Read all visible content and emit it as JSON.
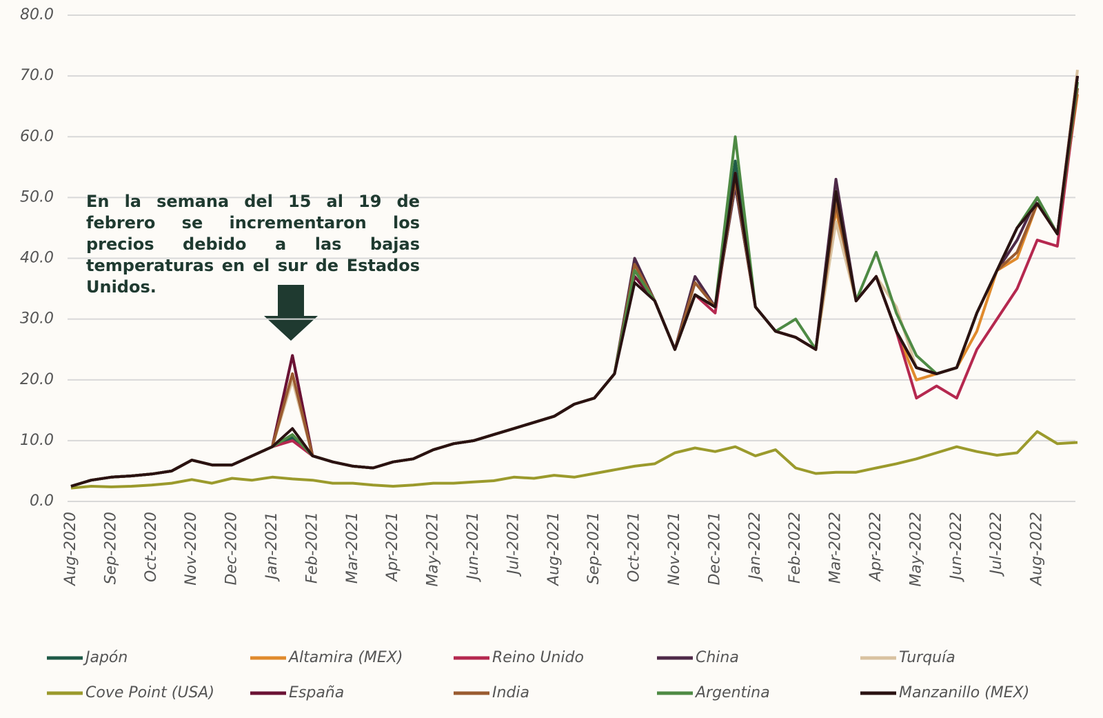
{
  "chart_data": {
    "type": "line",
    "annotation": "En la semana del 15 al 19 de febrero se incrementaron los precios debido a las bajas temperaturas en el sur de Estados Unidos.",
    "categories": [
      "Aug-2020",
      null,
      "Sep-2020",
      null,
      "Oct-2020",
      null,
      "Nov-2020",
      null,
      "Dec-2020",
      null,
      "Jan-2021",
      null,
      "Feb-2021",
      null,
      "Mar-2021",
      null,
      "Apr-2021",
      null,
      "May-2021",
      null,
      "Jun-2021",
      null,
      "Jul-2021",
      null,
      "Aug-2021",
      null,
      "Sep-2021",
      null,
      "Oct-2021",
      null,
      "Nov-2021",
      null,
      "Dec-2021",
      null,
      "Jan-2022",
      null,
      "Feb-2022",
      null,
      "Mar-2022",
      null,
      "Apr-2022",
      null,
      "May-2022",
      null,
      "Jun-2022",
      null,
      "Jul-2022",
      null,
      "Aug-2022",
      null,
      null
    ],
    "ylim": [
      0,
      80
    ],
    "yticks": [
      {
        "value": 0,
        "label": "0.0"
      },
      {
        "value": 10,
        "label": "10.0"
      },
      {
        "value": 20,
        "label": "20.0"
      },
      {
        "value": 30,
        "label": "30.0"
      },
      {
        "value": 40,
        "label": "40.0"
      },
      {
        "value": 50,
        "label": "50.0"
      },
      {
        "value": 60,
        "label": "60.0"
      },
      {
        "value": 70,
        "label": "70.0"
      },
      {
        "value": 80,
        "label": "80.0"
      }
    ],
    "grid": true,
    "series": [
      {
        "name": "Japón",
        "color": "#1f5a47",
        "values": [
          2.5,
          3.5,
          4.0,
          4.2,
          4.5,
          5.0,
          6.8,
          6.0,
          6.0,
          7.5,
          9.0,
          10.5,
          7.5,
          6.5,
          5.8,
          5.5,
          6.5,
          7.0,
          8.5,
          9.5,
          10.0,
          11.0,
          12.0,
          13.0,
          14.0,
          16.0,
          17.0,
          21.0,
          38,
          33,
          25,
          34,
          32,
          56,
          32,
          28,
          27,
          25,
          51,
          33,
          37,
          28,
          22,
          21,
          22,
          31,
          38,
          45,
          49,
          44,
          70
        ]
      },
      {
        "name": "Altamira (MEX)",
        "color": "#e08a2c",
        "values": [
          2.5,
          3.5,
          4.0,
          4.2,
          4.5,
          5.0,
          6.8,
          6.0,
          6.0,
          7.5,
          9.0,
          21,
          7.5,
          6.5,
          5.8,
          5.5,
          6.5,
          7.0,
          8.5,
          9.5,
          10.0,
          11.0,
          12.0,
          13.0,
          14.0,
          16.0,
          17.0,
          21.0,
          39,
          33,
          25,
          34,
          32,
          52,
          32,
          28,
          27,
          25,
          48,
          33,
          37,
          28,
          20,
          21,
          22,
          28,
          38,
          40,
          49,
          44,
          67
        ]
      },
      {
        "name": "Reino Unido",
        "color": "#b5284f",
        "values": [
          2.5,
          3.5,
          4.0,
          4.2,
          4.5,
          5.0,
          6.8,
          6.0,
          6.0,
          7.5,
          9.0,
          10,
          7.5,
          6.5,
          5.8,
          5.5,
          6.5,
          7.0,
          8.5,
          9.5,
          10.0,
          11.0,
          12.0,
          13.0,
          14.0,
          16.0,
          17.0,
          21.0,
          37,
          33,
          25,
          34,
          31,
          54,
          32,
          28,
          27,
          25,
          51,
          33,
          37,
          28,
          17,
          19,
          17,
          25,
          30,
          35,
          43,
          42,
          68
        ]
      },
      {
        "name": "China",
        "color": "#4e2a48",
        "values": [
          2.5,
          3.5,
          4.0,
          4.2,
          4.5,
          5.0,
          6.8,
          6.0,
          6.0,
          7.5,
          9.0,
          24,
          7.5,
          6.5,
          5.8,
          5.5,
          6.5,
          7.0,
          8.5,
          9.5,
          10.0,
          11.0,
          12.0,
          13.0,
          14.0,
          16.0,
          17.0,
          21.0,
          40,
          33,
          25,
          37,
          32,
          52,
          32,
          28,
          27,
          25,
          53,
          33,
          37,
          28,
          22,
          21,
          22,
          31,
          38,
          43,
          50,
          44,
          70
        ]
      },
      {
        "name": "Turquía",
        "color": "#d9c2a0",
        "values": [
          2.5,
          3.5,
          4.0,
          4.2,
          4.5,
          5.0,
          6.8,
          6.0,
          6.0,
          7.5,
          9.0,
          20,
          7.5,
          6.5,
          5.8,
          5.5,
          6.5,
          7.0,
          8.5,
          9.5,
          10.0,
          11.0,
          12.0,
          13.0,
          14.0,
          16.0,
          17.0,
          21.0,
          38,
          33,
          25,
          34,
          32,
          53,
          32,
          28,
          27,
          25,
          46,
          33,
          37,
          32,
          22,
          21,
          22,
          31,
          38,
          45,
          49,
          44,
          71
        ]
      },
      {
        "name": "Cove Point (USA)",
        "color": "#9b9a2c",
        "values": [
          2.2,
          2.5,
          2.4,
          2.5,
          2.7,
          3.0,
          3.6,
          3.0,
          3.8,
          3.5,
          4.0,
          3.7,
          3.5,
          3.0,
          3.0,
          2.7,
          2.5,
          2.7,
          3.0,
          3.0,
          3.2,
          3.4,
          4.0,
          3.8,
          4.3,
          4.0,
          4.6,
          5.2,
          5.8,
          6.2,
          8.0,
          8.8,
          8.2,
          9.0,
          7.5,
          8.5,
          5.5,
          4.6,
          4.8,
          4.8,
          5.5,
          6.2,
          7.0,
          8.0,
          9.0,
          8.2,
          7.6,
          8.0,
          11.5,
          9.5,
          9.7
        ]
      },
      {
        "name": "España",
        "color": "#6b1234",
        "values": [
          2.5,
          3.5,
          4.0,
          4.2,
          4.5,
          5.0,
          6.8,
          6.0,
          6.0,
          7.5,
          9.0,
          24,
          7.5,
          6.5,
          5.8,
          5.5,
          6.5,
          7.0,
          8.5,
          9.5,
          10.0,
          11.0,
          12.0,
          13.0,
          14.0,
          16.0,
          17.0,
          21.0,
          37,
          33,
          25,
          34,
          32,
          54,
          32,
          28,
          27,
          25,
          50,
          33,
          37,
          28,
          22,
          21,
          22,
          31,
          38,
          45,
          49,
          44,
          70
        ]
      },
      {
        "name": "India",
        "color": "#9a5b30",
        "values": [
          2.5,
          3.5,
          4.0,
          4.2,
          4.5,
          5.0,
          6.8,
          6.0,
          6.0,
          7.5,
          9.0,
          21,
          7.5,
          6.5,
          5.8,
          5.5,
          6.5,
          7.0,
          8.5,
          9.5,
          10.0,
          11.0,
          12.0,
          13.0,
          14.0,
          16.0,
          17.0,
          21.0,
          39,
          33,
          25,
          36,
          32,
          53,
          32,
          28,
          27,
          25,
          49,
          33,
          37,
          28,
          22,
          21,
          22,
          31,
          38,
          41,
          49,
          44,
          68
        ]
      },
      {
        "name": "Argentina",
        "color": "#4e8a44",
        "values": [
          2.5,
          3.5,
          4.0,
          4.2,
          4.5,
          5.0,
          6.8,
          6.0,
          6.0,
          7.5,
          9.0,
          11,
          7.5,
          6.5,
          5.8,
          5.5,
          6.5,
          7.0,
          8.5,
          9.5,
          10.0,
          11.0,
          12.0,
          13.0,
          14.0,
          16.0,
          17.0,
          21.0,
          38,
          33,
          25,
          34,
          32,
          60,
          32,
          28,
          30,
          25,
          51,
          33,
          41,
          31,
          24,
          21,
          22,
          31,
          38,
          45,
          50,
          44,
          69
        ]
      },
      {
        "name": "Manzanillo (MEX)",
        "color": "#2a1212",
        "values": [
          2.5,
          3.5,
          4.0,
          4.2,
          4.5,
          5.0,
          6.8,
          6.0,
          6.0,
          7.5,
          9.0,
          12.0,
          7.5,
          6.5,
          5.8,
          5.5,
          6.5,
          7.0,
          8.5,
          9.5,
          10.0,
          11.0,
          12.0,
          13.0,
          14.0,
          16.0,
          17.0,
          21.0,
          36,
          33,
          25,
          34,
          32,
          54,
          32,
          28,
          27,
          25,
          51,
          33,
          37,
          28,
          22,
          21,
          22,
          31,
          38,
          45,
          49,
          44,
          70
        ]
      }
    ]
  }
}
